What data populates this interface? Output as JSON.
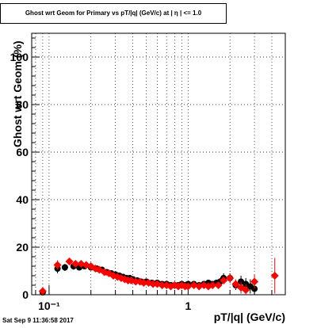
{
  "chart_data": {
    "type": "scatter",
    "title": "Ghost wrt Geom for Primary vs pT/|q| (GeV/c) at |  η | <= 1.0",
    "xlabel": "pT/|q| (GeV/c)",
    "ylabel": "Ghost wrt Geom (%)",
    "xscale": "log",
    "xlim": [
      0.075,
      5.0
    ],
    "ylim": [
      0,
      110
    ],
    "yticks": [
      "0",
      "20",
      "40",
      "60",
      "80",
      "100"
    ],
    "xticks": [
      "10⁻¹",
      "1"
    ],
    "grid": true,
    "series": [
      {
        "color": "#000000",
        "marker": "circle",
        "points": [
          [
            0.09,
            1.0
          ],
          [
            0.115,
            11.0
          ],
          [
            0.13,
            11.5
          ],
          [
            0.15,
            12.0
          ],
          [
            0.165,
            11.5
          ],
          [
            0.18,
            12.0
          ],
          [
            0.2,
            11.5
          ],
          [
            0.22,
            11.0
          ],
          [
            0.24,
            10.5
          ],
          [
            0.26,
            9.5
          ],
          [
            0.28,
            9.0
          ],
          [
            0.3,
            8.5
          ],
          [
            0.32,
            8.0
          ],
          [
            0.34,
            7.5
          ],
          [
            0.36,
            7.0
          ],
          [
            0.38,
            7.0
          ],
          [
            0.4,
            6.5
          ],
          [
            0.43,
            6.0
          ],
          [
            0.46,
            5.5
          ],
          [
            0.5,
            5.5
          ],
          [
            0.55,
            5.0
          ],
          [
            0.6,
            5.0
          ],
          [
            0.65,
            4.5
          ],
          [
            0.7,
            4.5
          ],
          [
            0.75,
            4.0
          ],
          [
            0.8,
            4.0
          ],
          [
            0.85,
            4.0
          ],
          [
            0.9,
            4.5
          ],
          [
            0.95,
            4.0
          ],
          [
            1.0,
            4.5
          ],
          [
            1.1,
            4.5
          ],
          [
            1.2,
            4.0
          ],
          [
            1.3,
            4.5
          ],
          [
            1.4,
            5.0
          ],
          [
            1.5,
            4.5
          ],
          [
            1.6,
            5.0
          ],
          [
            1.7,
            5.5
          ],
          [
            1.8,
            7.0
          ],
          [
            2.0,
            7.0
          ],
          [
            2.2,
            4.0
          ],
          [
            2.4,
            5.5
          ],
          [
            2.6,
            4.5
          ],
          [
            2.8,
            3.5
          ],
          [
            3.0,
            2.5
          ]
        ],
        "errors": [
          1.5,
          2,
          1.5,
          1.5,
          1.2,
          1.2,
          1,
          1,
          1,
          1,
          0.8,
          0.8,
          0.8,
          0.8,
          0.8,
          0.8,
          0.8,
          0.8,
          0.8,
          0.8,
          0.8,
          0.8,
          0.8,
          0.8,
          0.8,
          0.8,
          0.8,
          0.9,
          0.9,
          0.9,
          1,
          1,
          1,
          1.2,
          1.2,
          1.3,
          1.5,
          2,
          2,
          2,
          2.5,
          2.5,
          3,
          3
        ]
      },
      {
        "color": "#ff0000",
        "marker": "diamond",
        "points": [
          [
            0.09,
            1.5
          ],
          [
            0.115,
            12.5
          ],
          [
            0.14,
            14.0
          ],
          [
            0.155,
            13.0
          ],
          [
            0.17,
            13.0
          ],
          [
            0.185,
            12.5
          ],
          [
            0.2,
            12.0
          ],
          [
            0.215,
            11.0
          ],
          [
            0.23,
            10.5
          ],
          [
            0.25,
            9.5
          ],
          [
            0.27,
            9.0
          ],
          [
            0.29,
            8.0
          ],
          [
            0.31,
            7.5
          ],
          [
            0.33,
            7.0
          ],
          [
            0.35,
            6.5
          ],
          [
            0.37,
            6.0
          ],
          [
            0.39,
            6.0
          ],
          [
            0.42,
            5.5
          ],
          [
            0.45,
            5.5
          ],
          [
            0.48,
            5.0
          ],
          [
            0.52,
            5.0
          ],
          [
            0.56,
            4.5
          ],
          [
            0.6,
            4.5
          ],
          [
            0.65,
            4.0
          ],
          [
            0.7,
            4.0
          ],
          [
            0.75,
            3.5
          ],
          [
            0.8,
            4.0
          ],
          [
            0.85,
            3.5
          ],
          [
            0.9,
            4.0
          ],
          [
            0.95,
            3.5
          ],
          [
            1.0,
            3.5
          ],
          [
            1.1,
            4.0
          ],
          [
            1.2,
            3.5
          ],
          [
            1.3,
            4.0
          ],
          [
            1.4,
            3.5
          ],
          [
            1.5,
            4.0
          ],
          [
            1.65,
            4.0
          ],
          [
            1.8,
            6.0
          ],
          [
            2.0,
            7.0
          ],
          [
            2.2,
            4.5
          ],
          [
            2.4,
            3.0
          ],
          [
            2.6,
            2.0
          ],
          [
            3.0,
            5.5
          ],
          [
            4.2,
            8.0
          ]
        ],
        "errors": [
          1.5,
          2,
          1.5,
          1.5,
          1.2,
          1.2,
          1,
          1,
          1,
          1,
          0.8,
          0.8,
          0.8,
          0.8,
          0.8,
          0.8,
          0.8,
          0.8,
          0.8,
          0.8,
          0.8,
          0.8,
          0.8,
          0.8,
          0.8,
          0.8,
          0.8,
          0.8,
          0.9,
          0.9,
          0.9,
          1,
          1,
          1,
          1.2,
          1.2,
          1.3,
          1.5,
          2,
          2,
          2.5,
          2.5,
          3,
          7.5
        ]
      }
    ]
  },
  "footer": {
    "datestamp": "Sat Sep  9 11:36:58 2017"
  }
}
